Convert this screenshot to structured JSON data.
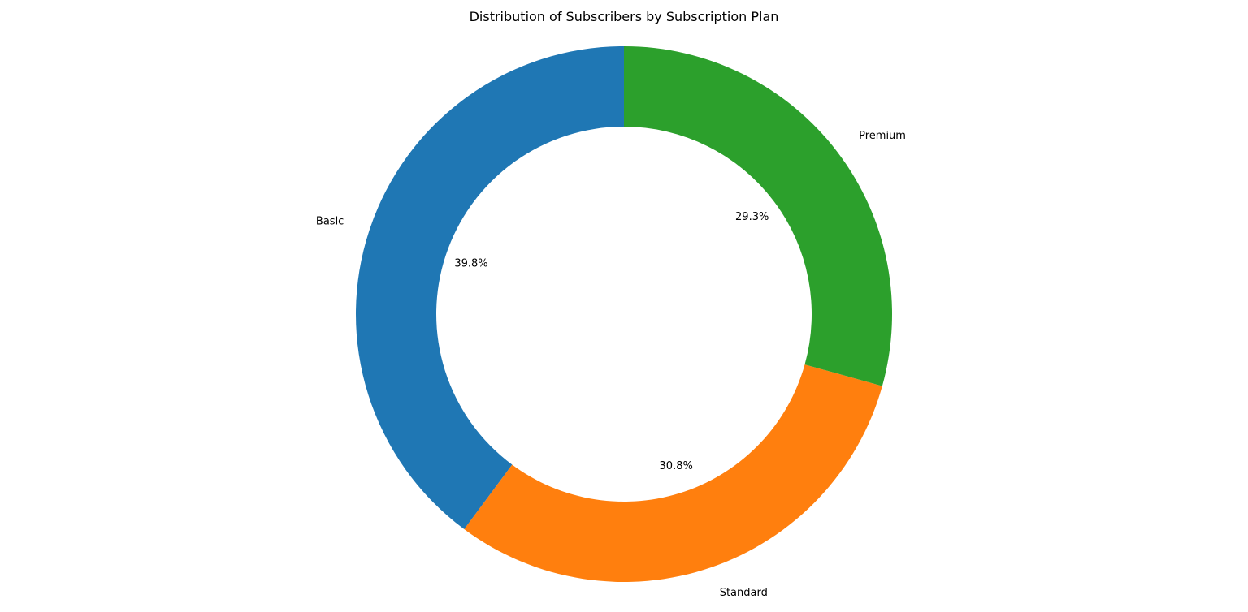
{
  "chart_data": {
    "type": "pie",
    "variant": "donut",
    "title": "Distribution of Subscribers by Subscription Plan",
    "start_angle_deg": 90,
    "direction": "counterclockwise",
    "slices": [
      {
        "label": "Basic",
        "value": 39.8,
        "pct_label": "39.8%",
        "color": "#1f77b4"
      },
      {
        "label": "Standard",
        "value": 30.8,
        "pct_label": "30.8%",
        "color": "#ff7f0e"
      },
      {
        "label": "Premium",
        "value": 29.3,
        "pct_label": "29.3%",
        "color": "#2ca02c"
      }
    ],
    "legend": "none"
  }
}
